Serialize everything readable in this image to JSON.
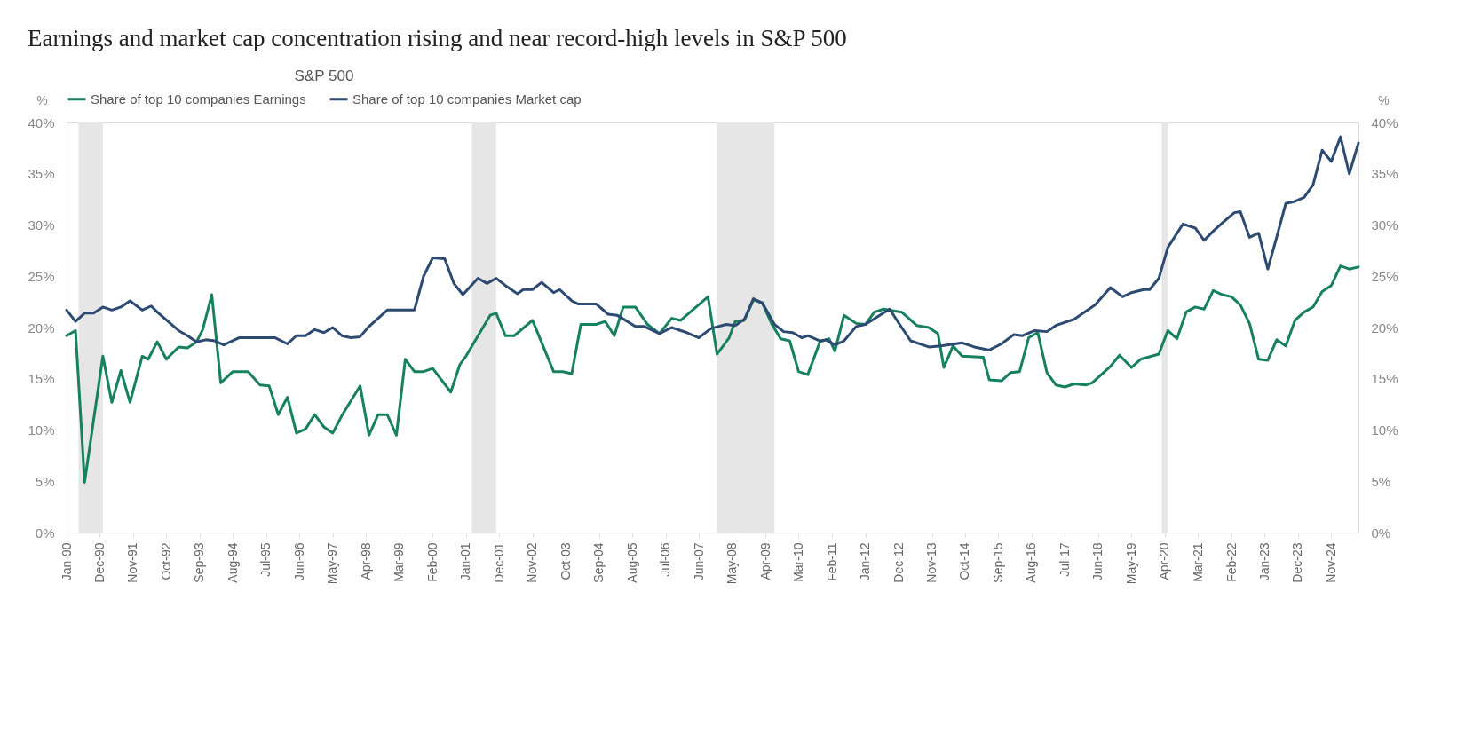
{
  "chart_data": {
    "type": "line",
    "title": "Earnings and market cap concentration rising and near record-high levels in S&P 500",
    "legend_title": "S&P 500",
    "ylabel": "%",
    "y2label": "%",
    "xlim": [
      "1990-01",
      "2025-08"
    ],
    "xticks": [
      {
        "value": "1990-01",
        "label": "Jan-90"
      },
      {
        "value": "1990-12",
        "label": "Dec-90"
      },
      {
        "value": "1991-11",
        "label": "Nov-91"
      },
      {
        "value": "1992-10",
        "label": "Oct-92"
      },
      {
        "value": "1993-09",
        "label": "Sep-93"
      },
      {
        "value": "1994-08",
        "label": "Aug-94"
      },
      {
        "value": "1995-07",
        "label": "Jul-95"
      },
      {
        "value": "1996-06",
        "label": "Jun-96"
      },
      {
        "value": "1997-05",
        "label": "May-97"
      },
      {
        "value": "1998-04",
        "label": "Apr-98"
      },
      {
        "value": "1999-03",
        "label": "Mar-99"
      },
      {
        "value": "2000-02",
        "label": "Feb-00"
      },
      {
        "value": "2001-01",
        "label": "Jan-01"
      },
      {
        "value": "2001-12",
        "label": "Dec-01"
      },
      {
        "value": "2002-11",
        "label": "Nov-02"
      },
      {
        "value": "2003-10",
        "label": "Oct-03"
      },
      {
        "value": "2004-09",
        "label": "Sep-04"
      },
      {
        "value": "2005-08",
        "label": "Aug-05"
      },
      {
        "value": "2006-07",
        "label": "Jul-06"
      },
      {
        "value": "2007-06",
        "label": "Jun-07"
      },
      {
        "value": "2008-05",
        "label": "May-08"
      },
      {
        "value": "2009-04",
        "label": "Apr-09"
      },
      {
        "value": "2010-03",
        "label": "Mar-10"
      },
      {
        "value": "2011-02",
        "label": "Feb-11"
      },
      {
        "value": "2012-01",
        "label": "Jan-12"
      },
      {
        "value": "2012-12",
        "label": "Dec-12"
      },
      {
        "value": "2013-11",
        "label": "Nov-13"
      },
      {
        "value": "2014-10",
        "label": "Oct-14"
      },
      {
        "value": "2015-09",
        "label": "Sep-15"
      },
      {
        "value": "2016-08",
        "label": "Aug-16"
      },
      {
        "value": "2017-07",
        "label": "Jul-17"
      },
      {
        "value": "2018-06",
        "label": "Jun-18"
      },
      {
        "value": "2019-05",
        "label": "May-19"
      },
      {
        "value": "2020-04",
        "label": "Apr-20"
      },
      {
        "value": "2021-03",
        "label": "Mar-21"
      },
      {
        "value": "2022-02",
        "label": "Feb-22"
      },
      {
        "value": "2023-01",
        "label": "Jan-23"
      },
      {
        "value": "2023-12",
        "label": "Dec-23"
      },
      {
        "value": "2024-11",
        "label": "Nov-24"
      }
    ],
    "ylim": [
      0,
      40
    ],
    "yticks": [
      {
        "value": 0,
        "label": "0%"
      },
      {
        "value": 5,
        "label": "5%"
      },
      {
        "value": 10,
        "label": "10%"
      },
      {
        "value": 15,
        "label": "15%"
      },
      {
        "value": 20,
        "label": "20%"
      },
      {
        "value": 25,
        "label": "25%"
      },
      {
        "value": 30,
        "label": "30%"
      },
      {
        "value": 35,
        "label": "35%"
      },
      {
        "value": 40,
        "label": "40%"
      }
    ],
    "y2lim": [
      0,
      40
    ],
    "y2ticks": [
      {
        "value": 0,
        "label": "0%"
      },
      {
        "value": 5,
        "label": "5%"
      },
      {
        "value": 10,
        "label": "10%"
      },
      {
        "value": 15,
        "label": "15%"
      },
      {
        "value": 20,
        "label": "20%"
      },
      {
        "value": 25,
        "label": "25%"
      },
      {
        "value": 30,
        "label": "30%"
      },
      {
        "value": 35,
        "label": "35%"
      },
      {
        "value": 40,
        "label": "40%"
      }
    ],
    "legend": "top",
    "bands": [
      {
        "axis": "x",
        "from": "1990-05",
        "to": "1991-01",
        "color": "#e6e6e6"
      },
      {
        "axis": "x",
        "from": "2001-03",
        "to": "2001-11",
        "color": "#e6e6e6"
      },
      {
        "axis": "x",
        "from": "2007-12",
        "to": "2009-07",
        "color": "#e6e6e6"
      },
      {
        "axis": "x",
        "from": "2020-03",
        "to": "2020-05",
        "color": "#e6e6e6"
      }
    ],
    "series": [
      {
        "name": "Share of top 10 companies Earnings",
        "color": "#17805e",
        "x": [
          "1990-01",
          "1990-04",
          "1990-07",
          "1991-01",
          "1991-04",
          "1991-07",
          "1991-10",
          "1992-02",
          "1992-04",
          "1992-07",
          "1992-10",
          "1993-02",
          "1993-05",
          "1993-08",
          "1993-10",
          "1994-01",
          "1994-04",
          "1994-08",
          "1995-01",
          "1995-05",
          "1995-08",
          "1995-11",
          "1996-02",
          "1996-05",
          "1996-08",
          "1996-11",
          "1997-02",
          "1997-05",
          "1997-08",
          "1998-02",
          "1998-05",
          "1998-08",
          "1998-11",
          "1999-02",
          "1999-05",
          "1999-08",
          "1999-11",
          "2000-02",
          "2000-08",
          "2000-11",
          "2001-01",
          "2001-09",
          "2001-11",
          "2002-02",
          "2002-05",
          "2002-11",
          "2003-06",
          "2003-09",
          "2003-12",
          "2004-03",
          "2004-08",
          "2004-11",
          "2005-02",
          "2005-05",
          "2005-09",
          "2006-01",
          "2006-05",
          "2006-09",
          "2006-12",
          "2007-09",
          "2007-12",
          "2008-04",
          "2008-06",
          "2008-09",
          "2008-12",
          "2009-03",
          "2009-06",
          "2009-09",
          "2009-12",
          "2010-03",
          "2010-06",
          "2010-10",
          "2011-01",
          "2011-03",
          "2011-06",
          "2011-10",
          "2012-01",
          "2012-04",
          "2012-07",
          "2013-01",
          "2013-06",
          "2013-10",
          "2014-01",
          "2014-03",
          "2014-06",
          "2014-09",
          "2015-04",
          "2015-06",
          "2015-10",
          "2016-01",
          "2016-04",
          "2016-07",
          "2016-10",
          "2017-01",
          "2017-04",
          "2017-07",
          "2017-10",
          "2018-02",
          "2018-04",
          "2018-07",
          "2018-10",
          "2019-01",
          "2019-05",
          "2019-08",
          "2020-02",
          "2020-05",
          "2020-08",
          "2020-11",
          "2021-02",
          "2021-05",
          "2021-08",
          "2021-11",
          "2022-02",
          "2022-05",
          "2022-08",
          "2022-11",
          "2023-02",
          "2023-05",
          "2023-08",
          "2023-11",
          "2024-02",
          "2024-05",
          "2024-08",
          "2024-11",
          "2025-02",
          "2025-05",
          "2025-08"
        ],
        "values": [
          19.2,
          19.7,
          4.9,
          17.2,
          12.7,
          15.8,
          12.7,
          17.2,
          16.9,
          18.6,
          16.9,
          18.1,
          18.0,
          18.6,
          19.8,
          23.2,
          14.6,
          15.7,
          15.7,
          14.4,
          14.3,
          11.5,
          13.2,
          9.7,
          10.1,
          11.5,
          10.3,
          9.7,
          11.4,
          14.3,
          9.5,
          11.5,
          11.5,
          9.5,
          16.9,
          15.7,
          15.7,
          16.0,
          13.7,
          16.4,
          17.2,
          21.2,
          21.4,
          19.2,
          19.2,
          20.7,
          15.7,
          15.7,
          15.5,
          20.3,
          20.3,
          20.6,
          19.2,
          22.0,
          22.0,
          20.3,
          19.4,
          20.9,
          20.7,
          23.0,
          17.4,
          19.0,
          20.6,
          20.7,
          22.7,
          22.4,
          20.4,
          18.9,
          18.7,
          15.7,
          15.4,
          18.6,
          18.9,
          17.7,
          21.2,
          20.4,
          20.3,
          21.5,
          21.8,
          21.5,
          20.2,
          20.0,
          19.4,
          16.1,
          18.2,
          17.2,
          17.1,
          14.9,
          14.8,
          15.6,
          15.7,
          19.0,
          19.5,
          15.6,
          14.4,
          14.2,
          14.5,
          14.4,
          14.6,
          15.4,
          16.2,
          17.3,
          16.1,
          16.9,
          17.4,
          19.7,
          18.9,
          21.5,
          22.0,
          21.8,
          23.6,
          23.2,
          23.0,
          22.2,
          20.4,
          16.9,
          16.8,
          18.8,
          18.2,
          20.7,
          21.5,
          22.0,
          23.5,
          24.1,
          26.0,
          25.7,
          25.9
        ]
      },
      {
        "name": "Share of top 10 companies Market cap",
        "color": "#2d4a72",
        "x": [
          "1990-01",
          "1990-04",
          "1990-07",
          "1990-10",
          "1991-01",
          "1991-04",
          "1991-07",
          "1991-10",
          "1992-02",
          "1992-05",
          "1992-07",
          "1993-02",
          "1993-05",
          "1993-08",
          "1993-11",
          "1994-02",
          "1994-05",
          "1994-10",
          "1995-05",
          "1995-10",
          "1996-02",
          "1996-05",
          "1996-08",
          "1996-11",
          "1997-02",
          "1997-05",
          "1997-08",
          "1997-11",
          "1998-02",
          "1998-05",
          "1998-11",
          "1999-08",
          "1999-11",
          "2000-02",
          "2000-06",
          "2000-09",
          "2000-12",
          "2001-05",
          "2001-08",
          "2001-11",
          "2002-02",
          "2002-06",
          "2002-08",
          "2002-11",
          "2003-02",
          "2003-06",
          "2003-08",
          "2003-12",
          "2004-02",
          "2004-08",
          "2004-12",
          "2005-03",
          "2005-09",
          "2005-12",
          "2006-05",
          "2006-09",
          "2007-02",
          "2007-06",
          "2007-10",
          "2008-03",
          "2008-06",
          "2008-09",
          "2008-12",
          "2009-03",
          "2009-07",
          "2009-10",
          "2010-01",
          "2010-04",
          "2010-06",
          "2010-10",
          "2010-12",
          "2011-03",
          "2011-06",
          "2011-10",
          "2012-01",
          "2012-09",
          "2013-01",
          "2013-04",
          "2013-10",
          "2014-02",
          "2014-09",
          "2015-01",
          "2015-06",
          "2015-10",
          "2016-02",
          "2016-05",
          "2016-09",
          "2017-01",
          "2017-04",
          "2017-10",
          "2018-05",
          "2018-10",
          "2019-02",
          "2019-05",
          "2019-09",
          "2019-11",
          "2020-02",
          "2020-05",
          "2020-10",
          "2021-02",
          "2021-05",
          "2021-08",
          "2021-11",
          "2022-03",
          "2022-05",
          "2022-08",
          "2022-11",
          "2023-02",
          "2023-05",
          "2023-08",
          "2023-11",
          "2024-02",
          "2024-05",
          "2024-08",
          "2024-11",
          "2025-02",
          "2025-05",
          "2025-08"
        ],
        "values": [
          21.7,
          20.6,
          21.4,
          21.4,
          22.0,
          21.7,
          22.0,
          22.6,
          21.7,
          22.1,
          21.5,
          19.7,
          19.2,
          18.6,
          18.8,
          18.7,
          18.3,
          19.0,
          19.0,
          19.0,
          18.4,
          19.2,
          19.2,
          19.8,
          19.5,
          20.0,
          19.2,
          19.0,
          19.1,
          20.1,
          21.7,
          21.7,
          25.0,
          26.8,
          26.7,
          24.3,
          23.2,
          24.8,
          24.3,
          24.8,
          24.1,
          23.3,
          23.7,
          23.7,
          24.4,
          23.4,
          23.7,
          22.6,
          22.3,
          22.3,
          21.3,
          21.2,
          20.1,
          20.1,
          19.4,
          20.0,
          19.5,
          19.0,
          19.9,
          20.3,
          20.2,
          20.8,
          22.8,
          22.4,
          20.3,
          19.6,
          19.5,
          19.0,
          19.2,
          18.7,
          18.8,
          18.3,
          18.7,
          20.1,
          20.3,
          21.8,
          20.0,
          18.7,
          18.1,
          18.2,
          18.5,
          18.1,
          17.8,
          18.4,
          19.3,
          19.2,
          19.7,
          19.6,
          20.2,
          20.8,
          22.2,
          23.9,
          23.0,
          23.4,
          23.7,
          23.7,
          24.8,
          27.8,
          30.1,
          29.7,
          28.5,
          29.4,
          30.2,
          31.2,
          31.3,
          28.8,
          29.2,
          25.7,
          28.8,
          32.1,
          32.3,
          32.7,
          33.9,
          37.3,
          36.2,
          38.6,
          35.0,
          38.0
        ]
      }
    ]
  }
}
